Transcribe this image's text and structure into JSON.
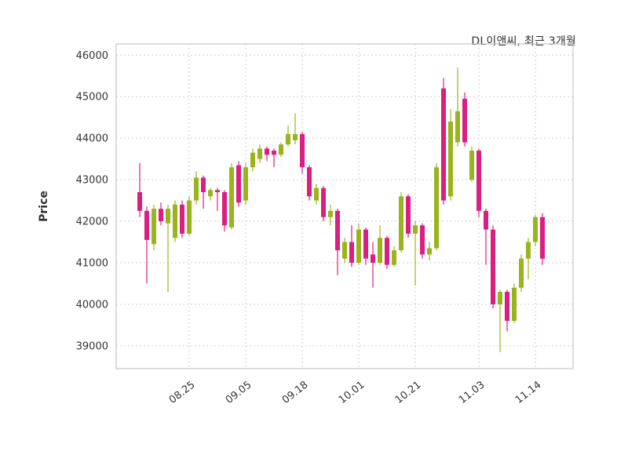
{
  "chart_data": {
    "type": "candlestick",
    "title": "DL이앤씨, 최근 3개월",
    "ylabel": "Price",
    "grid": true,
    "legend": "none",
    "y_ticks": [
      39000,
      40000,
      41000,
      42000,
      43000,
      44000,
      45000,
      46000
    ],
    "ylim": [
      38450,
      46270
    ],
    "x_tick_labels": [
      "08.25",
      "09.05",
      "09.18",
      "10.01",
      "10.21",
      "11.03",
      "11.14"
    ],
    "x_tick_indices": [
      7,
      15,
      23,
      31,
      39,
      48,
      56
    ],
    "colors": {
      "bullish": "#99B41D",
      "bearish": "#DB1F82"
    },
    "ohlc": [
      [
        42700,
        43400,
        42100,
        42250
      ],
      [
        42250,
        42350,
        40500,
        41550
      ],
      [
        41450,
        42400,
        41300,
        42300
      ],
      [
        42300,
        42450,
        41900,
        42000
      ],
      [
        41950,
        42400,
        40300,
        42300
      ],
      [
        41600,
        42500,
        41500,
        42400
      ],
      [
        42400,
        42500,
        41600,
        41700
      ],
      [
        41700,
        42600,
        41650,
        42500
      ],
      [
        42500,
        43200,
        42400,
        43050
      ],
      [
        43050,
        43100,
        42300,
        42700
      ],
      [
        42600,
        42800,
        42500,
        42750
      ],
      [
        42750,
        42800,
        42250,
        42700
      ],
      [
        42700,
        42750,
        41750,
        41900
      ],
      [
        41850,
        43400,
        41800,
        43300
      ],
      [
        43350,
        43450,
        42350,
        42450
      ],
      [
        42500,
        43400,
        42400,
        43300
      ],
      [
        43300,
        43750,
        43200,
        43650
      ],
      [
        43500,
        43850,
        43400,
        43750
      ],
      [
        43750,
        43800,
        43450,
        43600
      ],
      [
        43700,
        43750,
        43300,
        43600
      ],
      [
        43600,
        43900,
        43550,
        43850
      ],
      [
        43850,
        44300,
        43800,
        44100
      ],
      [
        43950,
        44600,
        43850,
        44100
      ],
      [
        44100,
        44150,
        43150,
        43300
      ],
      [
        43300,
        43350,
        42500,
        42600
      ],
      [
        42500,
        42900,
        42400,
        42800
      ],
      [
        42800,
        42850,
        42000,
        42100
      ],
      [
        42100,
        42400,
        41900,
        42250
      ],
      [
        42250,
        42300,
        40700,
        41300
      ],
      [
        41100,
        41600,
        41000,
        41500
      ],
      [
        41500,
        41900,
        40900,
        41000
      ],
      [
        41000,
        41950,
        40950,
        41800
      ],
      [
        41800,
        41850,
        40950,
        41100
      ],
      [
        41200,
        41500,
        40400,
        41000
      ],
      [
        41000,
        41900,
        40950,
        41600
      ],
      [
        41600,
        41650,
        40850,
        40950
      ],
      [
        40950,
        41400,
        40900,
        41300
      ],
      [
        41300,
        42700,
        41250,
        42600
      ],
      [
        42600,
        42650,
        41600,
        41700
      ],
      [
        41700,
        42000,
        40450,
        41900
      ],
      [
        41900,
        41950,
        41100,
        41200
      ],
      [
        41200,
        41500,
        41050,
        41350
      ],
      [
        41350,
        43400,
        41300,
        43300
      ],
      [
        45200,
        45450,
        42400,
        42500
      ],
      [
        42600,
        44700,
        42500,
        44400
      ],
      [
        43900,
        45700,
        43800,
        44650
      ],
      [
        44950,
        45100,
        43800,
        43900
      ],
      [
        43000,
        43800,
        42950,
        43700
      ],
      [
        43700,
        43750,
        42100,
        42250
      ],
      [
        42250,
        42300,
        40950,
        41800
      ],
      [
        41800,
        41900,
        39900,
        40000
      ],
      [
        40000,
        40350,
        38850,
        40300
      ],
      [
        40300,
        40350,
        39350,
        39600
      ],
      [
        39600,
        40500,
        39550,
        40400
      ],
      [
        40400,
        41200,
        40300,
        41100
      ],
      [
        41100,
        41600,
        40600,
        41500
      ],
      [
        41500,
        42150,
        41400,
        42100
      ],
      [
        42100,
        42200,
        40950,
        41100
      ]
    ]
  }
}
